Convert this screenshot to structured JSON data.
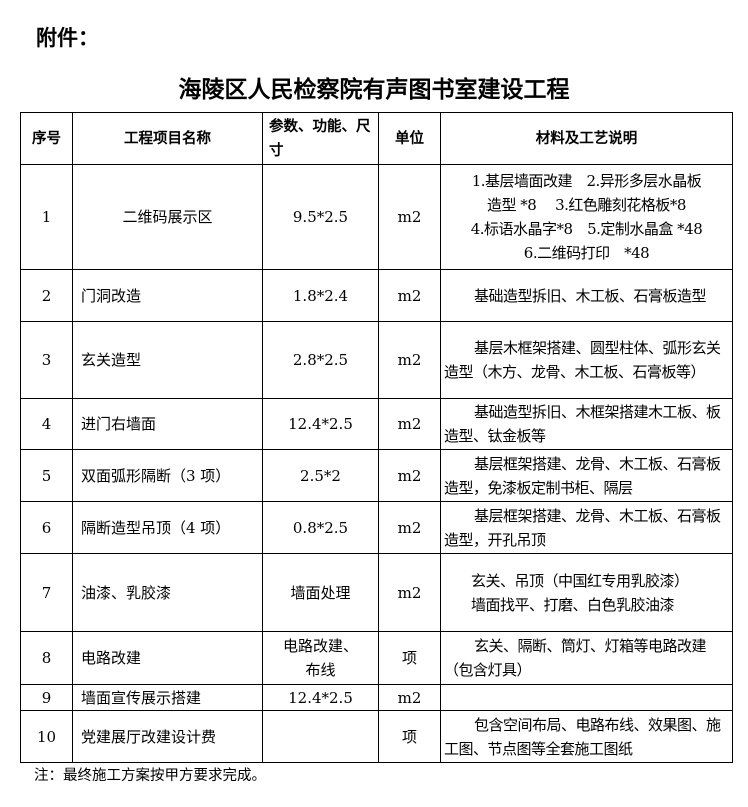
{
  "attachment_label": "附件：",
  "title": "海陵区人民检察院有声图书室建设工程",
  "headers": [
    "序号",
    "工程项目名称",
    "参数、功能、尺寸",
    "单位",
    "材料及工艺说明"
  ],
  "rows": [
    {
      "no": "1",
      "name": "二维码展示区",
      "spec": "9.5*2.5",
      "unit": "m2",
      "desc_lines": [
        "1.基层墙面改建　2.异形多层水晶板",
        "造型 *8　 3.红色雕刻花格板*8",
        "4.标语水晶字*8　5.定制水晶盒 *48",
        "6.二维码打印　*48"
      ]
    },
    {
      "no": "2",
      "name": "门洞改造",
      "spec": "1.8*2.4",
      "unit": "m2",
      "desc": "基础造型拆旧、木工板、石膏板造型"
    },
    {
      "no": "3",
      "name": "玄关造型",
      "spec": "2.8*2.5",
      "unit": "m2",
      "desc": "基层木框架搭建、圆型柱体、弧形玄关造型（木方、龙骨、木工板、石膏板等）"
    },
    {
      "no": "4",
      "name": "进门右墙面",
      "spec": "12.4*2.5",
      "unit": "m2",
      "desc": "基础造型拆旧、木框架搭建木工板、板造型、钛金板等"
    },
    {
      "no": "5",
      "name": "双面弧形隔断（3 项）",
      "spec": "2.5*2",
      "unit": "m2",
      "desc": "基层框架搭建、龙骨、木工板、石膏板造型，免漆板定制书柜、隔层"
    },
    {
      "no": "6",
      "name": "隔断造型吊顶（4 项）",
      "spec": "0.8*2.5",
      "unit": "m2",
      "desc": "基层框架搭建、龙骨、木工板、石膏板造型，开孔吊顶"
    },
    {
      "no": "7",
      "name": "油漆、乳胶漆",
      "spec": "墙面处理",
      "unit": "m2",
      "desc_lines": [
        "玄关、吊顶（中国红专用乳胶漆）",
        "墙面找平、打磨、白色乳胶油漆"
      ]
    },
    {
      "no": "8",
      "name": "电路改建",
      "spec": "电路改建、布线",
      "unit": "项",
      "desc": "玄关、隔断、筒灯、灯箱等电路改建（包含灯具）"
    },
    {
      "no": "9",
      "name": "墙面宣传展示搭建",
      "spec": "12.4*2.5",
      "unit": "m2",
      "desc": ""
    },
    {
      "no": "10",
      "name": "党建展厅改建设计费",
      "spec": "",
      "unit": "项",
      "desc": "包含空间布局、电路布线、效果图、施工图、节点图等全套施工图纸"
    }
  ],
  "note": "注：最终施工方案按甲方要求完成。"
}
